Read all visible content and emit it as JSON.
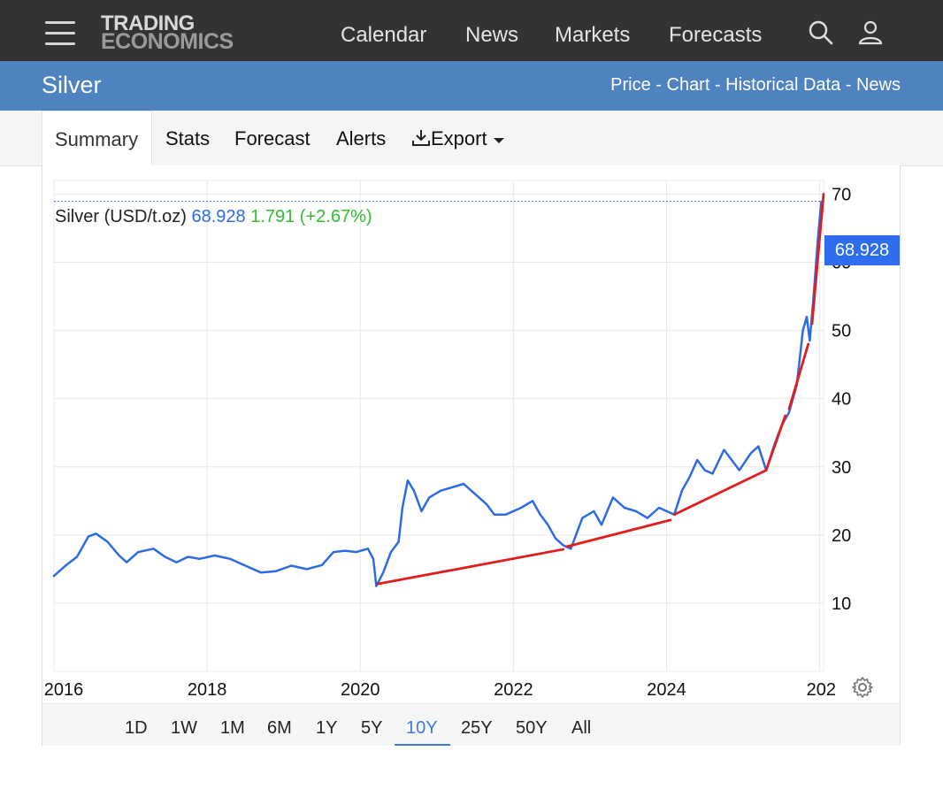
{
  "header": {
    "logo_line1": "TRADING",
    "logo_line2": "ECONOMICS",
    "nav": [
      "Calendar",
      "News",
      "Markets",
      "Forecasts"
    ],
    "icons": [
      "menu-icon",
      "search-icon",
      "user-icon"
    ]
  },
  "titlebar": {
    "name": "Silver",
    "links": "Price - Chart - Historical Data - News"
  },
  "tabs": {
    "active": "Summary",
    "items": [
      "Stats",
      "Forecast",
      "Alerts",
      "Export"
    ]
  },
  "legend": {
    "name": "Silver (USD/t.oz)",
    "value": "68.928",
    "change": "1.791 (+2.67%)"
  },
  "last_badge": "68.928",
  "ranges": [
    "1D",
    "1W",
    "1M",
    "6M",
    "1Y",
    "5Y",
    "10Y",
    "25Y",
    "50Y",
    "All"
  ],
  "active_range": "10Y",
  "colors": {
    "series": "#2d6be6",
    "trendlines": "#e21d1d",
    "header_bg": "#333333",
    "titlebar_bg": "#4f83c0"
  },
  "chart_data": {
    "type": "line",
    "title": "Silver (USD/t.oz)",
    "xlabel": "",
    "ylabel": "",
    "x_ticks": [
      "2016",
      "2018",
      "2020",
      "2022",
      "2024",
      "202"
    ],
    "y_ticks": [
      10,
      20,
      30,
      40,
      50,
      60,
      "70"
    ],
    "xlim": [
      2016.0,
      2026.05
    ],
    "ylim": [
      0,
      72
    ],
    "grid": true,
    "y_axis_side": "right",
    "last_value": 68.928,
    "series": [
      {
        "name": "Silver",
        "color": "#2d6be6",
        "points": [
          [
            2016.0,
            14.0
          ],
          [
            2016.15,
            15.5
          ],
          [
            2016.3,
            16.8
          ],
          [
            2016.45,
            19.8
          ],
          [
            2016.55,
            20.2
          ],
          [
            2016.7,
            19.0
          ],
          [
            2016.85,
            17.0
          ],
          [
            2016.95,
            16.0
          ],
          [
            2017.1,
            17.5
          ],
          [
            2017.3,
            18.0
          ],
          [
            2017.45,
            16.8
          ],
          [
            2017.6,
            16.0
          ],
          [
            2017.75,
            16.8
          ],
          [
            2017.9,
            16.5
          ],
          [
            2018.1,
            17.0
          ],
          [
            2018.3,
            16.5
          ],
          [
            2018.5,
            15.5
          ],
          [
            2018.7,
            14.5
          ],
          [
            2018.9,
            14.7
          ],
          [
            2019.1,
            15.5
          ],
          [
            2019.3,
            15.0
          ],
          [
            2019.5,
            15.6
          ],
          [
            2019.65,
            17.5
          ],
          [
            2019.8,
            17.7
          ],
          [
            2019.95,
            17.5
          ],
          [
            2020.1,
            18.0
          ],
          [
            2020.17,
            16.5
          ],
          [
            2020.21,
            12.5
          ],
          [
            2020.3,
            14.5
          ],
          [
            2020.4,
            17.5
          ],
          [
            2020.5,
            19.0
          ],
          [
            2020.55,
            24.0
          ],
          [
            2020.62,
            28.0
          ],
          [
            2020.7,
            26.5
          ],
          [
            2020.8,
            23.5
          ],
          [
            2020.9,
            25.5
          ],
          [
            2021.05,
            26.5
          ],
          [
            2021.2,
            27.0
          ],
          [
            2021.35,
            27.5
          ],
          [
            2021.5,
            26.0
          ],
          [
            2021.65,
            24.5
          ],
          [
            2021.75,
            23.0
          ],
          [
            2021.9,
            23.0
          ],
          [
            2022.1,
            24.0
          ],
          [
            2022.25,
            25.0
          ],
          [
            2022.35,
            23.0
          ],
          [
            2022.45,
            21.5
          ],
          [
            2022.55,
            19.5
          ],
          [
            2022.65,
            18.5
          ],
          [
            2022.75,
            18.0
          ],
          [
            2022.9,
            22.5
          ],
          [
            2023.05,
            23.5
          ],
          [
            2023.15,
            21.5
          ],
          [
            2023.3,
            25.5
          ],
          [
            2023.45,
            24.0
          ],
          [
            2023.6,
            23.5
          ],
          [
            2023.75,
            22.5
          ],
          [
            2023.9,
            24.0
          ],
          [
            2024.1,
            23.0
          ],
          [
            2024.2,
            26.5
          ],
          [
            2024.3,
            28.5
          ],
          [
            2024.4,
            31.0
          ],
          [
            2024.5,
            29.5
          ],
          [
            2024.6,
            29.0
          ],
          [
            2024.75,
            32.5
          ],
          [
            2024.85,
            31.0
          ],
          [
            2024.95,
            29.5
          ],
          [
            2025.1,
            32.0
          ],
          [
            2025.2,
            33.0
          ],
          [
            2025.3,
            29.5
          ],
          [
            2025.4,
            33.0
          ],
          [
            2025.5,
            36.0
          ],
          [
            2025.6,
            38.0
          ],
          [
            2025.7,
            42.0
          ],
          [
            2025.78,
            50.0
          ],
          [
            2025.83,
            52.0
          ],
          [
            2025.87,
            48.5
          ],
          [
            2025.92,
            55.0
          ],
          [
            2025.98,
            64.0
          ],
          [
            2026.02,
            68.9
          ]
        ]
      },
      {
        "name": "trendline-1",
        "color": "#e21d1d",
        "points": [
          [
            2020.22,
            12.8
          ],
          [
            2022.65,
            17.9
          ]
        ]
      },
      {
        "name": "trendline-2",
        "color": "#e21d1d",
        "points": [
          [
            2022.7,
            18.3
          ],
          [
            2024.05,
            22.2
          ]
        ]
      },
      {
        "name": "trendline-3",
        "color": "#e21d1d",
        "points": [
          [
            2024.1,
            23.0
          ],
          [
            2025.3,
            29.5
          ]
        ]
      },
      {
        "name": "trendline-4",
        "color": "#e21d1d",
        "points": [
          [
            2025.3,
            29.5
          ],
          [
            2025.55,
            37.5
          ]
        ]
      },
      {
        "name": "trendline-5",
        "color": "#e21d1d",
        "points": [
          [
            2025.6,
            38.5
          ],
          [
            2025.85,
            48.0
          ]
        ]
      },
      {
        "name": "trendline-6",
        "color": "#e21d1d",
        "points": [
          [
            2025.9,
            51.0
          ],
          [
            2026.05,
            70.0
          ]
        ]
      }
    ]
  }
}
